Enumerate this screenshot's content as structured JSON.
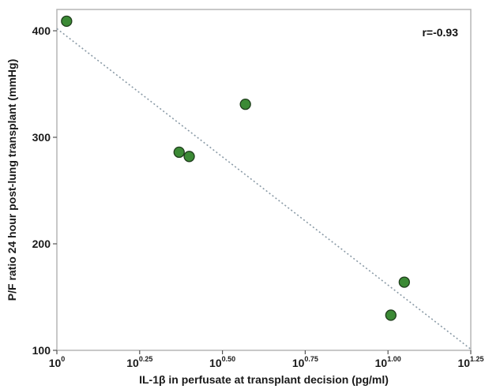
{
  "chart_data": {
    "type": "scatter",
    "xlabel": "IL-1β in perfusate at transplant decision (pg/ml)",
    "ylabel": "P/F ratio 24 hour post-lung transplant (mmHg)",
    "x_scale": "log10",
    "xlim_exponent": [
      0,
      1.25
    ],
    "ylim": [
      100,
      420
    ],
    "x_ticks": [
      {
        "base": "10",
        "exp": "0"
      },
      {
        "base": "10",
        "exp": "0.25"
      },
      {
        "base": "10",
        "exp": "0.50"
      },
      {
        "base": "10",
        "exp": "0.75"
      },
      {
        "base": "10",
        "exp": "1.00"
      },
      {
        "base": "10",
        "exp": "1.25"
      }
    ],
    "x_tick_exponents": [
      0,
      0.25,
      0.5,
      0.75,
      1.0,
      1.25
    ],
    "y_ticks": [
      100,
      200,
      300,
      400
    ],
    "points": [
      {
        "x": 1.07,
        "y": 409
      },
      {
        "x": 2.34,
        "y": 286
      },
      {
        "x": 2.51,
        "y": 282
      },
      {
        "x": 3.71,
        "y": 331
      },
      {
        "x": 10.2,
        "y": 133
      },
      {
        "x": 11.2,
        "y": 164
      }
    ],
    "trendline": {
      "from": {
        "x": 1.0,
        "y": 402
      },
      "to": {
        "x": 17.8,
        "y": 101
      }
    },
    "annotation": "r=-0.93",
    "annotation_position": "top-right",
    "grid": false,
    "point_color": "#3b8a35",
    "point_edge_color": "#1f3d1c",
    "trendline_color": "#8a9aa6",
    "frame_color": "#b5b5b5"
  }
}
